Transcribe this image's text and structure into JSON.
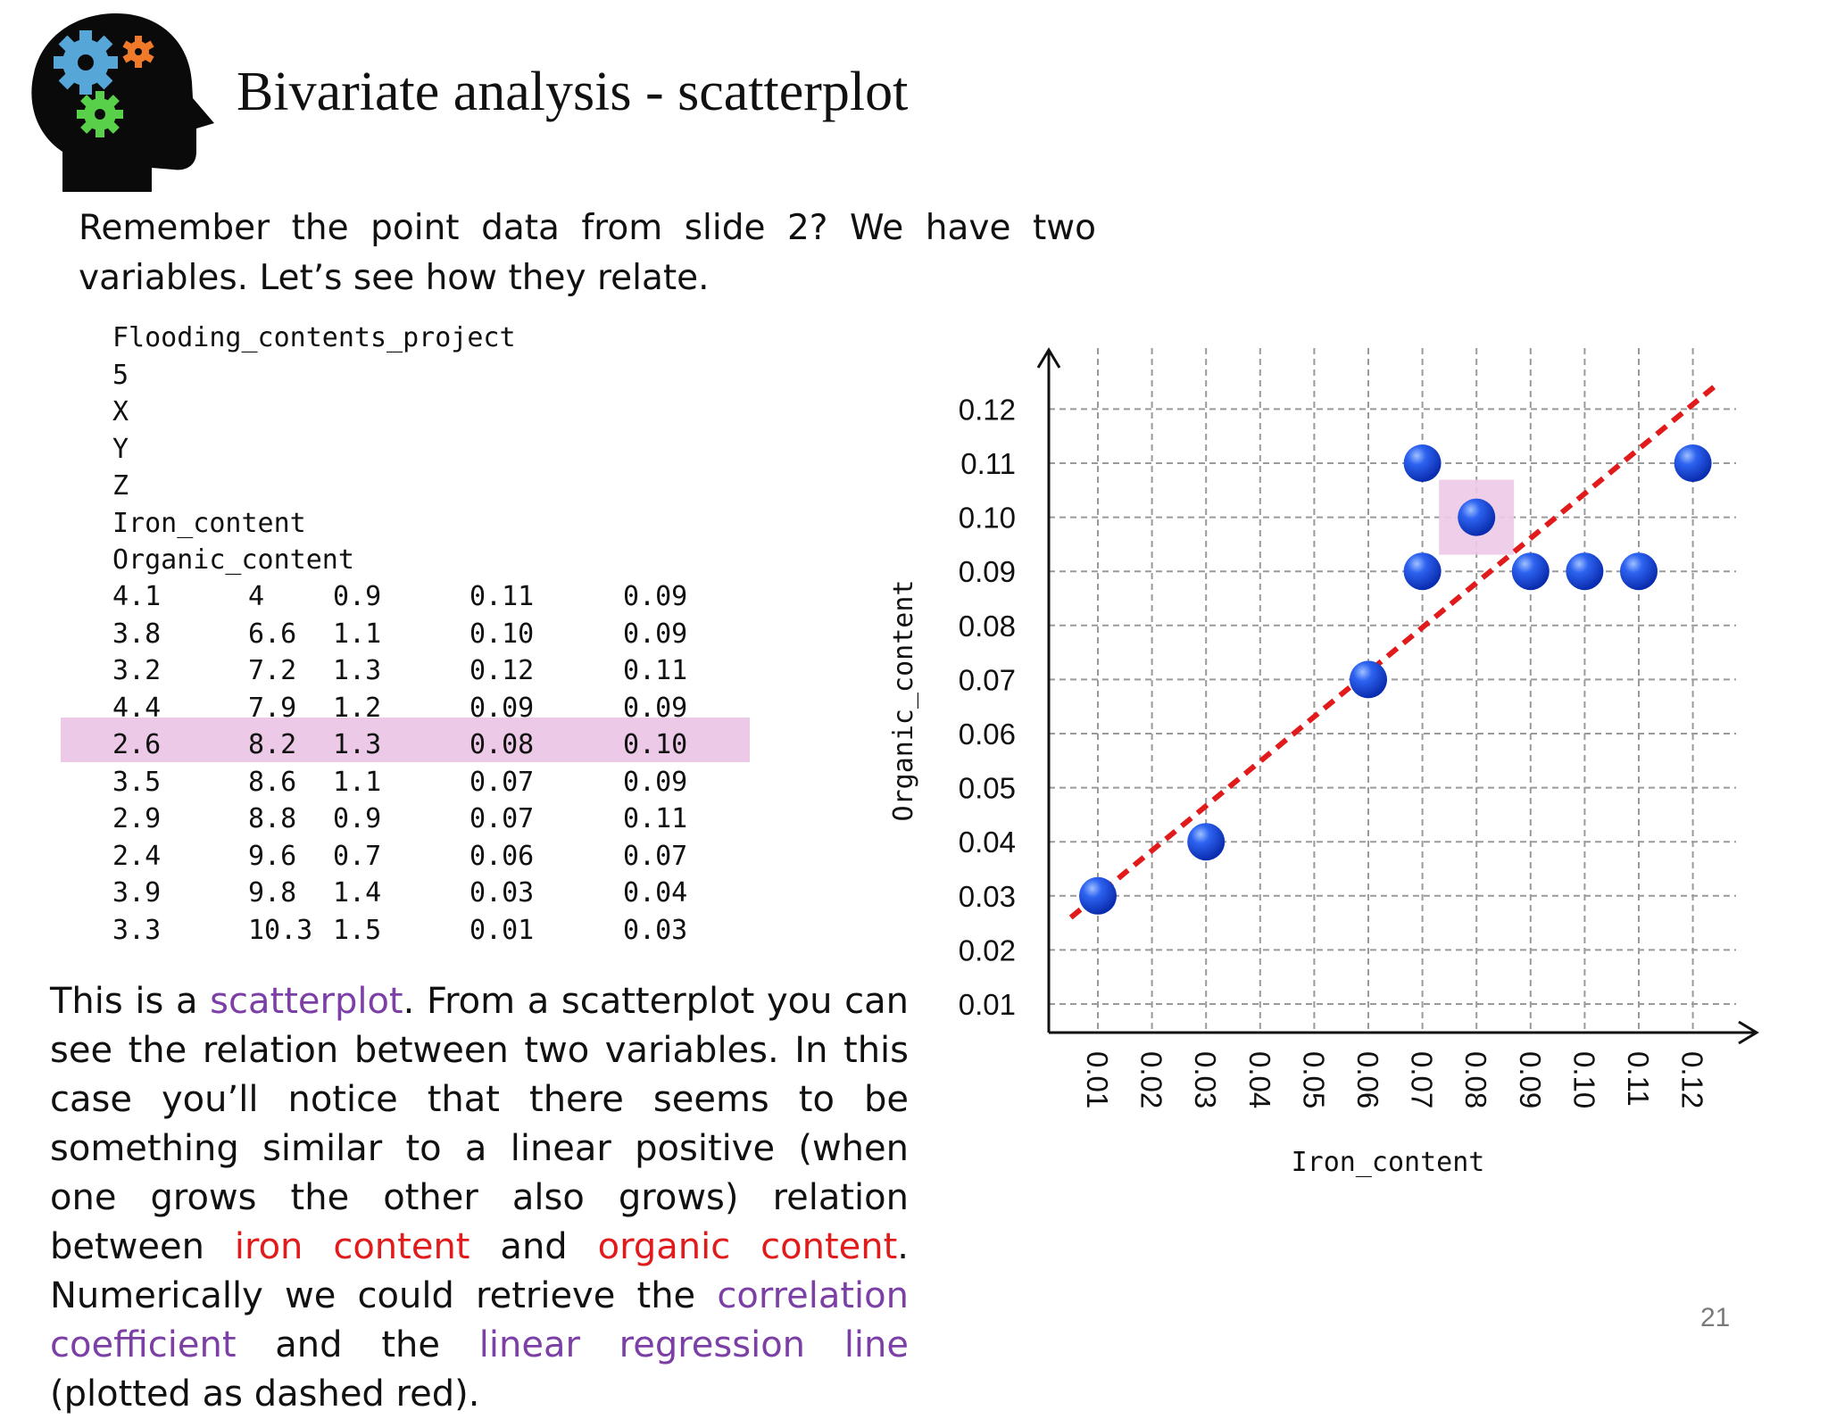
{
  "slide": {
    "title": "Bivariate analysis - scatterplot",
    "intro": "Remember the point data from slide 2? We have two variables. Let’s see how they relate.",
    "page_number": "21"
  },
  "data_file": {
    "lines": [
      "Flooding_contents_project",
      "5",
      "X",
      "Y",
      "Z",
      "Iron_content",
      "Organic_content"
    ],
    "rows": [
      [
        "4.1",
        "4",
        "0.9",
        "0.11",
        "0.09"
      ],
      [
        "3.8",
        "6.6",
        "1.1",
        "0.10",
        "0.09"
      ],
      [
        "3.2",
        "7.2",
        "1.3",
        "0.12",
        "0.11"
      ],
      [
        "4.4",
        "7.9",
        "1.2",
        "0.09",
        "0.09"
      ],
      [
        "2.6",
        "8.2",
        "1.3",
        "0.08",
        "0.10"
      ],
      [
        "3.5",
        "8.6",
        "1.1",
        "0.07",
        "0.09"
      ],
      [
        "2.9",
        "8.8",
        "0.9",
        "0.07",
        "0.11"
      ],
      [
        "2.4",
        "9.6",
        "0.7",
        "0.06",
        "0.07"
      ],
      [
        "3.9",
        "9.8",
        "1.4",
        "0.03",
        "0.04"
      ],
      [
        "3.3",
        "10.3",
        "1.5",
        "0.01",
        "0.03"
      ]
    ],
    "highlighted_row_index": 4
  },
  "body_text": {
    "p1": "This is a ",
    "k1": "scatterplot",
    "p2": ". From a scatterplot you can see the relation between two variables. In this case you’ll notice that there seems to be something similar to a linear positive (when one grows the other also grows) relation between ",
    "k2": "iron content",
    "p3": " and ",
    "k3": "organic content",
    "p4": ". Numerically we could retrieve the ",
    "k4": "correlation coefficient",
    "p5": " and the ",
    "k5": "linear regression line",
    "p6": " (plotted as dashed red)."
  },
  "colors": {
    "keyword_purple": "#7b3fa6",
    "keyword_red": "#e11b1b",
    "highlight_pink": "#ecc9e6",
    "point_blue": "#1f4fe0",
    "regression_red": "#e11b1b"
  },
  "chart_data": {
    "type": "scatter",
    "xlabel": "Iron_content",
    "ylabel": "Organic_content",
    "x_ticks": [
      "0.01",
      "0.02",
      "0.03",
      "0.04",
      "0.05",
      "0.06",
      "0.07",
      "0.08",
      "0.09",
      "0.10",
      "0.11",
      "0.12"
    ],
    "y_ticks": [
      "0.01",
      "0.02",
      "0.03",
      "0.04",
      "0.05",
      "0.06",
      "0.07",
      "0.08",
      "0.09",
      "0.10",
      "0.11",
      "0.12"
    ],
    "xlim": [
      0.01,
      0.12
    ],
    "ylim": [
      0.01,
      0.12
    ],
    "grid": true,
    "points": [
      {
        "x": 0.11,
        "y": 0.09
      },
      {
        "x": 0.1,
        "y": 0.09
      },
      {
        "x": 0.12,
        "y": 0.11
      },
      {
        "x": 0.09,
        "y": 0.09
      },
      {
        "x": 0.08,
        "y": 0.1
      },
      {
        "x": 0.07,
        "y": 0.09
      },
      {
        "x": 0.07,
        "y": 0.11
      },
      {
        "x": 0.06,
        "y": 0.07
      },
      {
        "x": 0.03,
        "y": 0.04
      },
      {
        "x": 0.01,
        "y": 0.03
      }
    ],
    "highlighted_point_index": 4,
    "regression_line": {
      "style": "dashed",
      "x": [
        0.005,
        0.125
      ],
      "y": [
        0.026,
        0.125
      ]
    }
  }
}
